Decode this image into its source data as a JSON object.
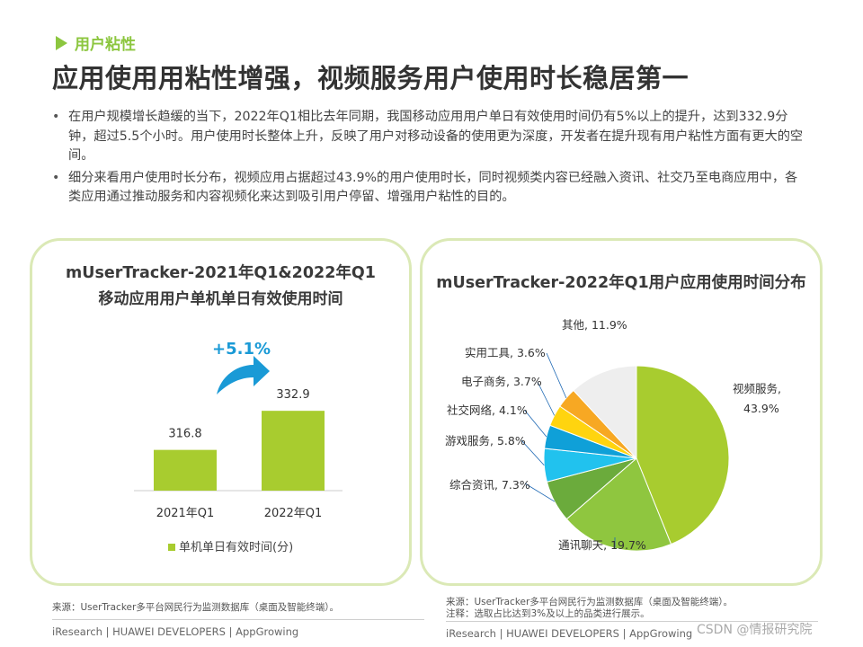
{
  "section_label": "用户粘性",
  "title": "应用使用用粘性增强，视频服务用户使用时长稳居第一",
  "bullets": [
    "在用户规模增长趋缓的当下，2022年Q1相比去年同期，我国移动应用用户单日有效使用时间仍有5%以上的提升，达到332.9分钟，超过5.5个小时。用户使用时长整体上升，反映了用户对移动设备的使用更为深度，开发者在提升现有用户粘性方面有更大的空间。",
    "细分来看用户使用时长分布，视频应用占据超过43.9%的用户使用时长，同时视频类内容已经融入资讯、社交乃至电商应用中，各类应用通过推动服务和内容视频化来达到吸引用户停留、增强用户粘性的目的。"
  ],
  "left_chart": {
    "title_line1": "mUserTracker-2021年Q1&2022年Q1",
    "title_line2": "移动应用用户单机单日有效使用时间",
    "growth": "+5.1%",
    "legend": "单机单日有效时间(分)",
    "color": "#a8cc2f"
  },
  "right_chart": {
    "title": "mUserTracker-2022年Q1用户应用使用时间分布"
  },
  "chart_data": [
    {
      "type": "bar",
      "categories": [
        "2021年Q1",
        "2022年Q1"
      ],
      "series": [
        {
          "name": "单机单日有效时间(分)",
          "values": [
            316.8,
            332.9
          ]
        }
      ],
      "value_labels": [
        "316.8",
        "332.9"
      ],
      "ylim": [
        300,
        340
      ],
      "grid": false,
      "legend": "bottom"
    },
    {
      "type": "pie",
      "slices": [
        {
          "label": "视频服务,",
          "pct_text": "43.9%",
          "value": 43.9,
          "color": "#a8cc2f"
        },
        {
          "label": "通讯聊天,",
          "pct_text": "19.7%",
          "value": 19.7,
          "color": "#8fc63f"
        },
        {
          "label": "综合资讯,",
          "pct_text": "7.3%",
          "value": 7.3,
          "color": "#6bab3c"
        },
        {
          "label": "游戏服务,",
          "pct_text": "5.8%",
          "value": 5.8,
          "color": "#21c2ee"
        },
        {
          "label": "社交网络,",
          "pct_text": "4.1%",
          "value": 4.1,
          "color": "#0fa0d8"
        },
        {
          "label": "电子商务,",
          "pct_text": "3.7%",
          "value": 3.7,
          "color": "#ffd40f"
        },
        {
          "label": "实用工具,",
          "pct_text": "3.6%",
          "value": 3.6,
          "color": "#f7a823"
        },
        {
          "label": "其他,",
          "pct_text": "11.9%",
          "value": 11.9,
          "color": "#eeeeee"
        }
      ],
      "legend": "none"
    }
  ],
  "footer": {
    "left_source": "来源：UserTracker多平台网民行为监测数据库（桌面及智能终端）。",
    "right_source": "来源：UserTracker多平台网民行为监测数据库（桌面及智能终端）。",
    "right_note": "注释：选取占比达到3%及以上的品类进行展示。",
    "brand_left": "iResearch | HUAWEI DEVELOPERS | AppGrowing",
    "brand_right": "iResearch | HUAWEI DEVELOPERS | AppGrowing",
    "watermark": "CSDN @情报研究院"
  }
}
